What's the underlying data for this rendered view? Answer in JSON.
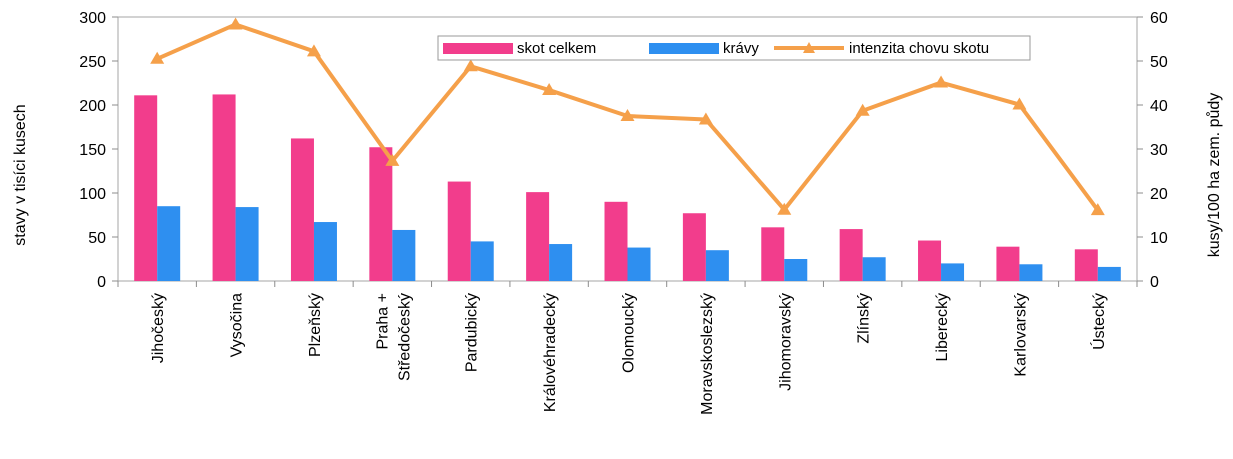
{
  "chart_data": {
    "type": "bar",
    "categories": [
      [
        "Jihočeský"
      ],
      [
        "Vysočina"
      ],
      [
        "Plzeňský"
      ],
      [
        "Praha +",
        "Středočeský"
      ],
      [
        "Pardubický"
      ],
      [
        "Královéhradecký"
      ],
      [
        "Olomoucký"
      ],
      [
        "Moravskoslezský"
      ],
      [
        "Jihomoravský"
      ],
      [
        "Zlínský"
      ],
      [
        "Liberecký"
      ],
      [
        "Karlovarský"
      ],
      [
        "Ústecký"
      ]
    ],
    "series": [
      {
        "name": "skot celkem",
        "type": "bar",
        "axis": "left",
        "color": "#F23D8C",
        "values": [
          211,
          212,
          162,
          152,
          113,
          101,
          90,
          77,
          61,
          59,
          46,
          39,
          36
        ]
      },
      {
        "name": "krávy",
        "type": "bar",
        "axis": "left",
        "color": "#2E8FF0",
        "values": [
          85,
          84,
          67,
          58,
          45,
          42,
          38,
          35,
          25,
          27,
          20,
          19,
          16
        ]
      },
      {
        "name": "intenzita chovu skotu",
        "type": "line",
        "axis": "right",
        "color": "#F5A04A",
        "marker": "triangle",
        "values": [
          50.5,
          58.3,
          52.2,
          27.3,
          48.8,
          43.4,
          37.5,
          36.7,
          16.2,
          38.7,
          45.1,
          40.1,
          16.1
        ]
      }
    ],
    "ylabel": "stavy v tisíci kusech",
    "y2label": "kusy/100 ha zem. půdy",
    "ylim": [
      0,
      300
    ],
    "y2lim": [
      0,
      60
    ],
    "yticks": [
      "0",
      "50",
      "100",
      "150",
      "200",
      "250",
      "300"
    ],
    "y2ticks": [
      "0",
      "10",
      "20",
      "30",
      "40",
      "50",
      "60"
    ],
    "grid": false,
    "legend": "top-right"
  }
}
